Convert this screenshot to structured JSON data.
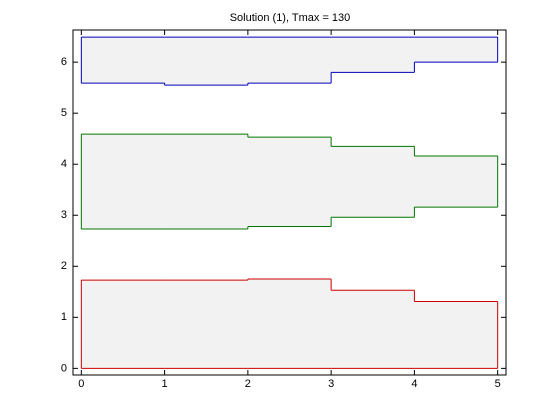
{
  "chart_data": {
    "type": "step_band",
    "title": "Solution (1), Tmax = 130",
    "bins": [
      0,
      1,
      2,
      3,
      4,
      5
    ],
    "fill": "#f2f2f2",
    "series": [
      {
        "color": "#cc0000",
        "lower": [
          0,
          0,
          0,
          0,
          0
        ],
        "upper": [
          1.73,
          1.73,
          1.75,
          1.53,
          1.31
        ]
      },
      {
        "color": "#007700",
        "lower": [
          2.73,
          2.73,
          2.78,
          2.96,
          3.16
        ],
        "upper": [
          4.59,
          4.59,
          4.53,
          4.35,
          4.16
        ]
      },
      {
        "color": "#0000bb",
        "lower": [
          5.59,
          5.55,
          5.59,
          5.8,
          6.0
        ],
        "upper": [
          6.49,
          6.49,
          6.49,
          6.49,
          6.49
        ]
      }
    ],
    "xlim": [
      -0.1,
      5.1
    ],
    "ylim": [
      -0.13,
      6.63
    ],
    "xticks": [
      0,
      1,
      2,
      3,
      4,
      5
    ],
    "yticks": [
      0,
      1,
      2,
      3,
      4,
      5,
      6
    ],
    "grid": false
  }
}
